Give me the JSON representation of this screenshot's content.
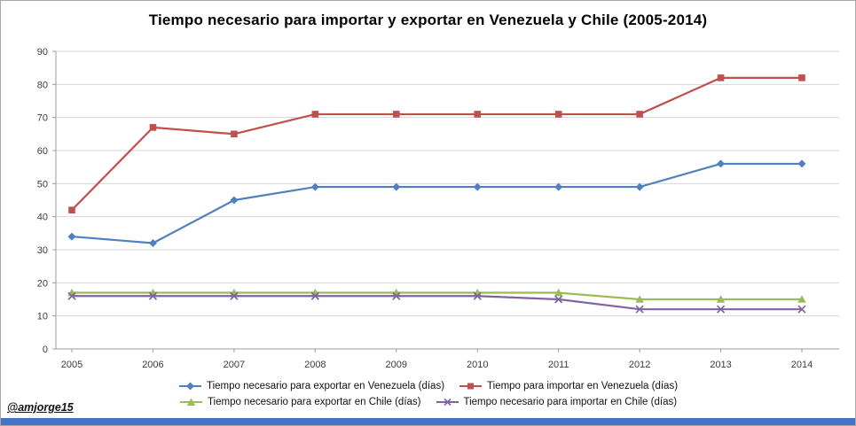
{
  "title": "Tiempo necesario para importar y exportar en Venezuela y Chile (2005-2014)",
  "watermark": "@amjorge15",
  "footer_bar_color": "#4472C4",
  "chart_data": {
    "type": "line",
    "title": "Tiempo necesario para importar y exportar en Venezuela y Chile (2005-2014)",
    "categories": [
      "2005",
      "2006",
      "2007",
      "2008",
      "2009",
      "2010",
      "2011",
      "2012",
      "2013",
      "2014"
    ],
    "series": [
      {
        "name": "Tiempo necesario para exportar en Venezuela (días)",
        "color": "#4F81BD",
        "marker": "diamond",
        "values": [
          34,
          32,
          45,
          49,
          49,
          49,
          49,
          49,
          56,
          56
        ]
      },
      {
        "name": "Tiempo para importar en Venezuela (días)",
        "color": "#C0504D",
        "marker": "square",
        "values": [
          42,
          67,
          65,
          71,
          71,
          71,
          71,
          71,
          82,
          82
        ]
      },
      {
        "name": "Tiempo necesario para exportar en Chile (días)",
        "color": "#9BBB59",
        "marker": "triangle",
        "values": [
          17,
          17,
          17,
          17,
          17,
          17,
          17,
          15,
          15,
          15
        ]
      },
      {
        "name": "Tiempo necesario para importar en Chile (días)",
        "color": "#8064A2",
        "marker": "x",
        "values": [
          16,
          16,
          16,
          16,
          16,
          16,
          15,
          12,
          12,
          12
        ]
      }
    ],
    "xlabel": "",
    "ylabel": "",
    "ylim": [
      0,
      90
    ],
    "ytick_step": 10,
    "grid": true,
    "gridline_color": "#D6D6D6",
    "axis_line_color": "#9C9C9C",
    "legend_position": "bottom"
  }
}
